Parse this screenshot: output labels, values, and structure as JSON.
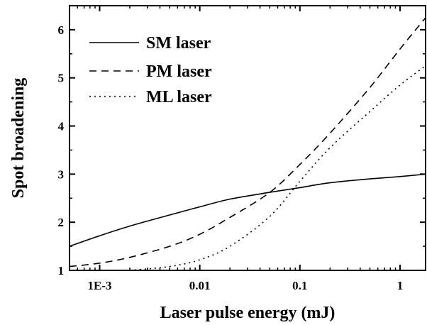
{
  "chart_data": {
    "type": "line",
    "title": "",
    "xlabel": "Laser pulse energy (mJ)",
    "ylabel": "Spot broadening",
    "x_scale": "log",
    "xlim": [
      0.0005,
      1.8
    ],
    "ylim": [
      1,
      6.5
    ],
    "x_ticks": [
      0.001,
      0.01,
      0.1,
      1
    ],
    "x_tick_labels": [
      "1E-3",
      "0.01",
      "0.1",
      "1"
    ],
    "y_ticks": [
      1,
      2,
      3,
      4,
      5,
      6
    ],
    "y_tick_labels": [
      "1",
      "2",
      "3",
      "4",
      "5",
      "6"
    ],
    "legend_position": "top-left",
    "grid": false,
    "series": [
      {
        "name": "SM laser",
        "line_style": "solid",
        "x": [
          0.0005,
          0.001,
          0.002,
          0.005,
          0.01,
          0.02,
          0.05,
          0.1,
          0.2,
          0.5,
          1,
          1.8
        ],
        "y": [
          1.5,
          1.72,
          1.92,
          2.15,
          2.32,
          2.48,
          2.62,
          2.72,
          2.82,
          2.9,
          2.95,
          3.0
        ]
      },
      {
        "name": "PM laser",
        "line_style": "dashed",
        "x": [
          0.0005,
          0.001,
          0.002,
          0.005,
          0.01,
          0.02,
          0.05,
          0.1,
          0.2,
          0.5,
          1,
          1.8
        ],
        "y": [
          1.08,
          1.15,
          1.27,
          1.5,
          1.75,
          2.1,
          2.62,
          3.2,
          3.85,
          4.8,
          5.6,
          6.25
        ]
      },
      {
        "name": "ML laser",
        "line_style": "dotted",
        "x": [
          0.002,
          0.005,
          0.01,
          0.02,
          0.05,
          0.1,
          0.2,
          0.5,
          1,
          1.8
        ],
        "y": [
          1.0,
          1.08,
          1.22,
          1.5,
          2.12,
          2.85,
          3.55,
          4.3,
          4.85,
          5.25
        ]
      }
    ]
  }
}
